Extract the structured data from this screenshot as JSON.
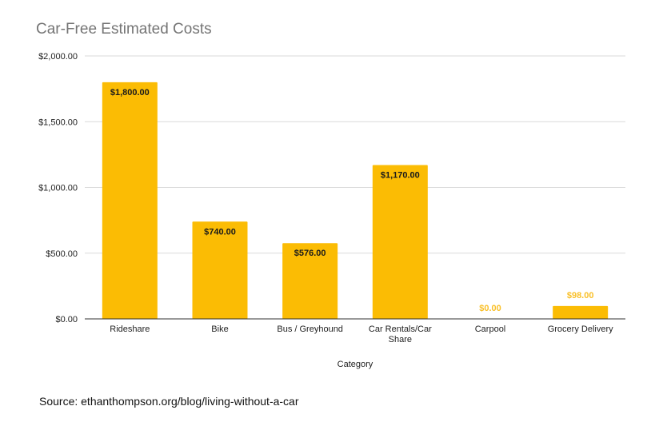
{
  "chart_data": {
    "type": "bar",
    "title": "Car-Free Estimated Costs",
    "xlabel": "Category",
    "ylabel": "",
    "categories": [
      [
        "Rideshare"
      ],
      [
        "Bike"
      ],
      [
        "Bus / Greyhound"
      ],
      [
        "Car Rentals/Car",
        "Share"
      ],
      [
        "Carpool"
      ],
      [
        "Grocery Delivery"
      ]
    ],
    "values": [
      1800,
      740,
      576,
      1170,
      0,
      98
    ],
    "data_labels": [
      "$1,800.00",
      "$740.00",
      "$576.00",
      "$1,170.00",
      "$0.00",
      "$98.00"
    ],
    "ylim": [
      0,
      2000
    ],
    "yticks": [
      0,
      500,
      1000,
      1500,
      2000
    ],
    "ytick_labels": [
      "$0.00",
      "$500.00",
      "$1,000.00",
      "$1,500.00",
      "$2,000.00"
    ],
    "grid": true,
    "legend": "none",
    "colors": {
      "bar": "#fbbc04",
      "inside_label": "#1a1a1a",
      "outside_label": "#f9bf26",
      "gridline": "#d9d9d9",
      "axis": "#333333",
      "title": "#757575"
    }
  },
  "source_note": "Source: ethanthompson.org/blog/living-without-a-car"
}
